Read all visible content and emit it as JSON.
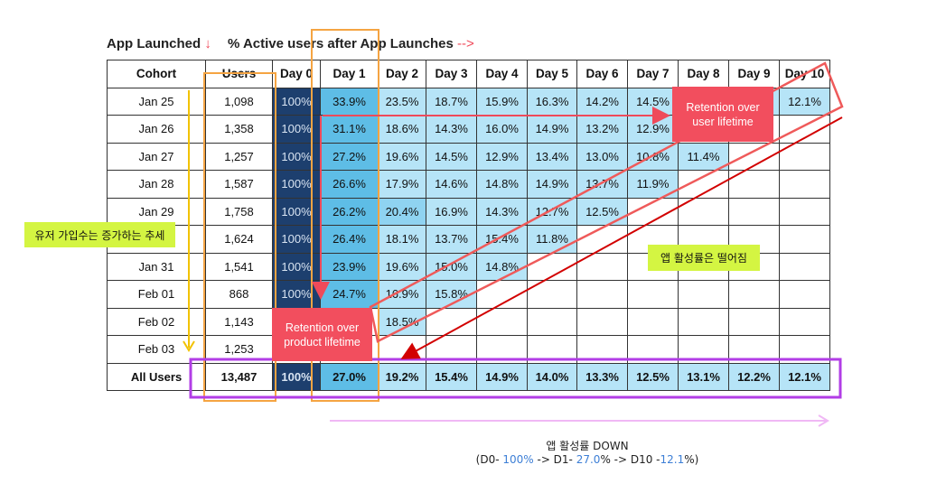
{
  "header": {
    "left_label": "App Launched",
    "left_arrow": "↓",
    "right_label": "% Active users after App Launches",
    "right_arrow": "-->"
  },
  "chart_data": {
    "type": "table",
    "columns": [
      "Cohort",
      "Users",
      "Day 0",
      "Day 1",
      "Day 2",
      "Day 3",
      "Day 4",
      "Day 5",
      "Day 6",
      "Day 7",
      "Day 8",
      "Day 9",
      "Day 10"
    ],
    "rows": [
      {
        "cohort": "Jan 25",
        "users": "1,098",
        "values": [
          "100%",
          "33.9%",
          "23.5%",
          "18.7%",
          "15.9%",
          "16.3%",
          "14.2%",
          "14.5%",
          "",
          "",
          "12.1%"
        ]
      },
      {
        "cohort": "Jan 26",
        "users": "1,358",
        "values": [
          "100%",
          "31.1%",
          "18.6%",
          "14.3%",
          "16.0%",
          "14.9%",
          "13.2%",
          "12.9%",
          "",
          ""
        ]
      },
      {
        "cohort": "Jan 27",
        "users": "1,257",
        "values": [
          "100%",
          "27.2%",
          "19.6%",
          "14.5%",
          "12.9%",
          "13.4%",
          "13.0%",
          "10.8%",
          "11.4%"
        ]
      },
      {
        "cohort": "Jan 28",
        "users": "1,587",
        "values": [
          "100%",
          "26.6%",
          "17.9%",
          "14.6%",
          "14.8%",
          "14.9%",
          "13.7%",
          "11.9%"
        ]
      },
      {
        "cohort": "Jan 29",
        "users": "1,758",
        "values": [
          "100%",
          "26.2%",
          "20.4%",
          "16.9%",
          "14.3%",
          "12.7%",
          "12.5%"
        ]
      },
      {
        "cohort": "",
        "users": "1,624",
        "values": [
          "100%",
          "26.4%",
          "18.1%",
          "13.7%",
          "15.4%",
          "11.8%"
        ]
      },
      {
        "cohort": "Jan 31",
        "users": "1,541",
        "values": [
          "100%",
          "23.9%",
          "19.6%",
          "15.0%",
          "14.8%"
        ]
      },
      {
        "cohort": "Feb 01",
        "users": "868",
        "values": [
          "100%",
          "24.7%",
          "16.9%",
          "15.8%"
        ]
      },
      {
        "cohort": "Feb 02",
        "users": "1,143",
        "values": [
          "",
          "",
          "18.5%"
        ]
      },
      {
        "cohort": "Feb 03",
        "users": "1,253",
        "values": []
      }
    ],
    "total": {
      "cohort": "All Users",
      "users": "13,487",
      "values": [
        "100%",
        "27.0%",
        "19.2%",
        "15.4%",
        "14.9%",
        "14.0%",
        "13.3%",
        "12.5%",
        "13.1%",
        "12.2%",
        "12.1%"
      ]
    },
    "colors": {
      "day0": "#1d3f6e",
      "day1": "#5ebde6",
      "light": "#b6e4f7",
      "medium": "#8fd3f1"
    }
  },
  "annotations": {
    "callout_user": "Retention over user lifetime",
    "callout_product": "Retention over product lifetime",
    "note_signup": "유저 가입수는 증가하는 추세",
    "note_activity": "앱 활성률은 떨어짐",
    "footer_line1": "앱 활성률 DOWN",
    "footer_p1": "(D0- ",
    "footer_v1": "100%",
    "footer_p2": " -> D1- ",
    "footer_v2": "27.0",
    "footer_p3": "% -> D10 -",
    "footer_v3": "12.1",
    "footer_p4": "%)"
  }
}
